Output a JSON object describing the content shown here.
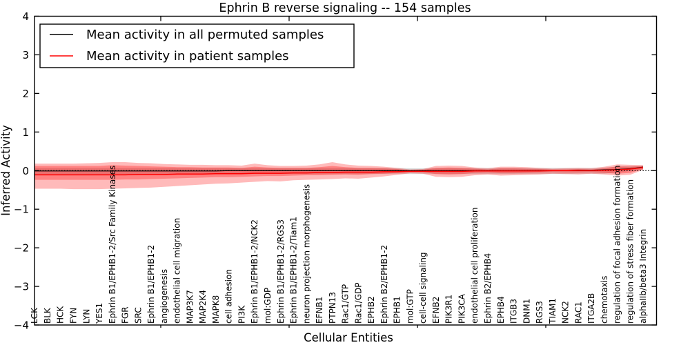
{
  "title": "Ephrin B reverse signaling -- 154 samples",
  "axes": {
    "xlabel": "Cellular Entities",
    "ylabel": "Inferred Activity",
    "yticks": [
      4,
      3,
      2,
      1,
      0,
      -1,
      -2,
      -3,
      -4
    ],
    "ylim": [
      -4,
      4
    ]
  },
  "legend": {
    "entries": [
      {
        "label": "Mean activity in all permuted samples",
        "color": "#000000"
      },
      {
        "label": "Mean activity in patient samples",
        "color": "#ff0000"
      }
    ]
  },
  "chart_data": {
    "type": "line",
    "title": "Ephrin B reverse signaling -- 154 samples",
    "xlabel": "Cellular Entities",
    "ylabel": "Inferred Activity",
    "ylim": [
      -4,
      4
    ],
    "grid": false,
    "legend_position": "upper left",
    "zero_line": {
      "y": 0,
      "style": "dotted",
      "color": "#000000"
    },
    "categories": [
      "LCK",
      "BLK",
      "HCK",
      "FYN",
      "LYN",
      "YES1",
      "Ephrin B1/EPHB1-2/Src Family Kinases",
      "FGR",
      "SRC",
      "Ephrin B1/EPHB1-2",
      "angiogenesis",
      "endothelial cell migration",
      "MAP3K7",
      "MAP2K4",
      "MAPK8",
      "cell adhesion",
      "PI3K",
      "Ephrin B1/EPHB1-2/NCK2",
      "mol:GDP",
      "Ephrin B1/EPHB1-2/RGS3",
      "Ephrin B1/EPHB1-2/Tiam1",
      "neuron projection morphogenesis",
      "EFNB1",
      "PTPN13",
      "Rac1/GTP",
      "Rac1/GDP",
      "EPHB2",
      "Ephrin B2/EPHB1-2",
      "EPHB1",
      "mol:GTP",
      "cell-cell signaling",
      "EFNB2",
      "PIK3R1",
      "PIK3CA",
      "endothelial cell proliferation",
      "Ephrin B2/EPHB4",
      "EPHB4",
      "ITGB3",
      "DNM1",
      "RGS3",
      "TIAM1",
      "NCK2",
      "RAC1",
      "ITGA2B",
      "chemotaxis",
      "regulation of focal adhesion formation",
      "regulation of stress fiber formation",
      "alphaIIb/beta3 Integrin"
    ],
    "series": [
      {
        "name": "Mean activity in all permuted samples",
        "color": "#000000",
        "style": "solid",
        "values": [
          -0.01,
          -0.01,
          -0.01,
          -0.01,
          -0.01,
          -0.01,
          -0.01,
          -0.01,
          -0.01,
          -0.01,
          -0.01,
          -0.01,
          -0.01,
          -0.01,
          -0.01,
          0,
          0,
          0,
          0,
          0,
          0,
          0,
          0,
          0,
          0,
          0,
          0,
          0,
          0,
          0,
          0,
          0,
          0,
          0,
          0,
          0,
          0,
          0,
          0,
          0,
          0,
          0,
          0.01,
          0.01,
          0.02,
          0.03,
          0.05,
          0.09
        ]
      },
      {
        "name": "Mean activity in patient samples",
        "color": "#ff0000",
        "style": "solid",
        "values": [
          -0.11,
          -0.11,
          -0.11,
          -0.11,
          -0.11,
          -0.11,
          -0.11,
          -0.11,
          -0.1,
          -0.1,
          -0.1,
          -0.09,
          -0.09,
          -0.09,
          -0.08,
          -0.08,
          -0.08,
          -0.07,
          -0.07,
          -0.07,
          -0.06,
          -0.06,
          -0.05,
          -0.05,
          -0.04,
          -0.04,
          -0.04,
          -0.03,
          -0.03,
          -0.02,
          -0.02,
          -0.02,
          -0.02,
          -0.02,
          -0.01,
          -0.01,
          -0.01,
          -0.01,
          -0.01,
          -0.01,
          0,
          0,
          0,
          0,
          0.01,
          0.02,
          0.04,
          0.08
        ]
      }
    ],
    "bands": [
      {
        "name": "permuted samples range",
        "color": "#999999",
        "opacity": 0.35,
        "upper": [
          0.07,
          0.07,
          0.07,
          0.07,
          0.07,
          0.07,
          0.07,
          0.07,
          0.07,
          0.07,
          0.07,
          0.07,
          0.07,
          0.07,
          0.07,
          0.07,
          0.07,
          0.07,
          0.07,
          0.07,
          0.07,
          0.07,
          0.07,
          0.07,
          0.07,
          0.07,
          0.07,
          0.07,
          0.07,
          0.06,
          0.06,
          0.07,
          0.07,
          0.07,
          0.07,
          0.07,
          0.07,
          0.07,
          0.07,
          0.07,
          0.07,
          0.07,
          0.07,
          0.07,
          0.08,
          0.1,
          0.12,
          0.13
        ],
        "lower": [
          -0.1,
          -0.1,
          -0.1,
          -0.1,
          -0.1,
          -0.1,
          -0.1,
          -0.1,
          -0.1,
          -0.1,
          -0.1,
          -0.1,
          -0.1,
          -0.09,
          -0.09,
          -0.09,
          -0.09,
          -0.09,
          -0.09,
          -0.09,
          -0.09,
          -0.09,
          -0.09,
          -0.09,
          -0.09,
          -0.09,
          -0.09,
          -0.09,
          -0.09,
          -0.09,
          -0.09,
          -0.09,
          -0.09,
          -0.09,
          -0.09,
          -0.09,
          -0.09,
          -0.09,
          -0.09,
          -0.09,
          -0.09,
          -0.09,
          -0.08,
          -0.08,
          -0.08,
          -0.05,
          -0.01,
          0.03
        ]
      },
      {
        "name": "patient samples outer range",
        "color": "#ff0000",
        "opacity": 0.27,
        "upper": [
          0.18,
          0.18,
          0.18,
          0.18,
          0.19,
          0.2,
          0.22,
          0.22,
          0.2,
          0.19,
          0.17,
          0.16,
          0.15,
          0.15,
          0.14,
          0.14,
          0.13,
          0.18,
          0.14,
          0.12,
          0.12,
          0.13,
          0.16,
          0.22,
          0.16,
          0.13,
          0.12,
          0.1,
          0.07,
          0.03,
          0.04,
          0.12,
          0.13,
          0.12,
          0.08,
          0.06,
          0.1,
          0.1,
          0.09,
          0.07,
          0.05,
          0.06,
          0.07,
          0.06,
          0.1,
          0.16,
          0.15,
          0.14
        ],
        "lower": [
          -0.47,
          -0.47,
          -0.47,
          -0.48,
          -0.48,
          -0.48,
          -0.47,
          -0.46,
          -0.45,
          -0.44,
          -0.42,
          -0.4,
          -0.38,
          -0.36,
          -0.34,
          -0.33,
          -0.31,
          -0.29,
          -0.27,
          -0.28,
          -0.25,
          -0.24,
          -0.23,
          -0.22,
          -0.2,
          -0.21,
          -0.18,
          -0.15,
          -0.11,
          -0.07,
          -0.08,
          -0.16,
          -0.17,
          -0.16,
          -0.12,
          -0.1,
          -0.13,
          -0.12,
          -0.11,
          -0.1,
          -0.08,
          -0.09,
          -0.1,
          -0.08,
          -0.1,
          -0.13,
          -0.11,
          0.02
        ]
      },
      {
        "name": "patient samples inner range",
        "color": "#ff0000",
        "opacity": 0.3,
        "upper": [
          0.12,
          0.12,
          0.12,
          0.12,
          0.12,
          0.12,
          0.14,
          0.13,
          0.12,
          0.11,
          0.1,
          0.09,
          0.09,
          0.08,
          0.08,
          0.08,
          0.07,
          0.1,
          0.08,
          0.07,
          0.07,
          0.07,
          0.09,
          0.12,
          0.09,
          0.07,
          0.07,
          0.06,
          0.04,
          0.01,
          0.02,
          0.07,
          0.08,
          0.07,
          0.05,
          0.03,
          0.06,
          0.06,
          0.05,
          0.04,
          0.03,
          0.03,
          0.04,
          0.03,
          0.06,
          0.11,
          0.1,
          0.12
        ],
        "lower": [
          -0.24,
          -0.24,
          -0.24,
          -0.24,
          -0.24,
          -0.24,
          -0.24,
          -0.23,
          -0.23,
          -0.22,
          -0.21,
          -0.2,
          -0.19,
          -0.18,
          -0.17,
          -0.17,
          -0.16,
          -0.15,
          -0.14,
          -0.14,
          -0.13,
          -0.12,
          -0.12,
          -0.11,
          -0.1,
          -0.11,
          -0.09,
          -0.08,
          -0.06,
          -0.04,
          -0.04,
          -0.09,
          -0.1,
          -0.09,
          -0.06,
          -0.05,
          -0.07,
          -0.07,
          -0.06,
          -0.05,
          -0.04,
          -0.05,
          -0.05,
          -0.04,
          -0.06,
          -0.08,
          -0.06,
          0.04
        ]
      }
    ]
  }
}
